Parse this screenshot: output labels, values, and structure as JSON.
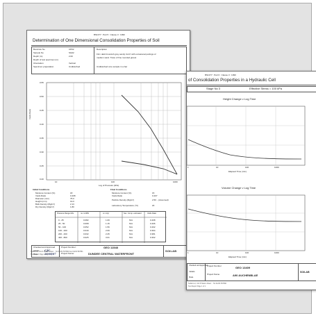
{
  "back": {
    "header": "BS1377 : Part 5 : Clause 3 : 1990",
    "title": "Determination of One Dimensional Consolidation Properties of Soil",
    "info_labels": [
      "Borehole No",
      "Sample No",
      "Depth (m)",
      "Depth of test specimen (m)",
      "Orientation",
      "Specimen preparation"
    ],
    "info_values": [
      "CP02",
      "SG02",
      "2.00",
      "",
      "Vertical",
      "Undisturbed"
    ],
    "description_label": "Description",
    "description_text": [
      "Firm dark brownish grey sandy CLAY with occasional partings of",
      "medium sand. Trace of fine rounded gravel."
    ],
    "remark": "Undisturbed core sample in a bar",
    "y_label": "Voids Ratio",
    "y_ticks": [
      "0.55",
      "0.50",
      "0.45",
      "0.40",
      "0.35",
      "0.30",
      "0.25",
      "0.20"
    ],
    "x_ticks": [
      "10",
      "100",
      "1000"
    ],
    "x_label": "Log of Pressure (kPa)",
    "initial_heading": "Initial Conditions",
    "initial_labels": [
      "Moisture Content (%)",
      "Voids Ratio",
      "Diameter (mm)",
      "Height (mm)",
      "Bulk Density (Mg/m³)",
      "Dry Density (Mg/m³)"
    ],
    "initial_values": [
      "18",
      "0.408",
      "75.0",
      "19.0",
      "2.13",
      "1.80"
    ],
    "final_heading": "Final Conditions",
    "final_labels": [
      "Moisture Content (%)",
      "Voids Ratio",
      "Particle Density (Mg/m³)",
      "Laboratory Temperature (°C)"
    ],
    "final_values": [
      "15",
      "0.407",
      "2.50 ...(Assumed)",
      "20"
    ],
    "table_headers": [
      "Pressure Range kPa",
      "mv m²/MN",
      "cv m²/yr",
      "Sec. Comp. estimated",
      "Voids Ratio"
    ],
    "table_rows": [
      [
        "0 - 25",
        "0.082",
        "1.09",
        "N/A",
        "0.408"
      ],
      [
        "25 - 50",
        "0.068",
        "1.15",
        "N/A",
        "0.406"
      ],
      [
        "50 - 100",
        "0.052",
        "1.56",
        "N/A",
        "0.402"
      ],
      [
        "100 - 200",
        "0.040",
        "2.09",
        "N/A",
        "0.394"
      ],
      [
        "200 - 400",
        "0.032",
        "2.25",
        "N/A",
        "0.381"
      ],
      [
        "400 - 800",
        "0.025",
        "3.01",
        "N/A",
        "0.362"
      ]
    ],
    "checked_label": "Checked and Approved",
    "initials_label": "Initials",
    "date_label": "Date",
    "initials_value": "CJC",
    "date_value": "26/08/07",
    "project_number_label": "Project Number:",
    "project_number": "GEO 11548",
    "project_name_label": "Project Name:",
    "project_name": "DUNDEE CENTRAL WATERFRONT",
    "brand": "SOILAB",
    "footer_lines": [
      "Soilab Ltd, Unit 8 Station Road ... Tel 01234 567890 Fax 01234 567891",
      "Test Report Page 1 of 1"
    ]
  },
  "front": {
    "header": "BS1377 : Part 6 : Clause 3 : 1990",
    "title": "of Consolidation Properties in a Hydraulic Cell",
    "stage_label": "Stage No 3",
    "stress_label": "Effective Stress = 100 kPa",
    "chart1_title": "Height Change v Log Time",
    "chart1_xlabel": "Elapsed Time (min)",
    "chart2_title": "Volume Change v Log Time",
    "chart2_xlabel": "Elapsed Time (min)",
    "x_ticks": [
      "1",
      "10",
      "100",
      "1000"
    ],
    "checked_label": "Checked and Approved",
    "initials_label": "Initials",
    "date_label": "Date",
    "project_number_label": "Project Number",
    "project_number": "GEO 13409",
    "project_name_label": "Project Name",
    "project_name": "A90 AUCHENBLAE",
    "brand": "SOILAB",
    "footer_lines": [
      "Soilab Ltd, Unit 8 Station Road ... Tel 01234 567890",
      "Test Report Page 1 of 1"
    ]
  }
}
